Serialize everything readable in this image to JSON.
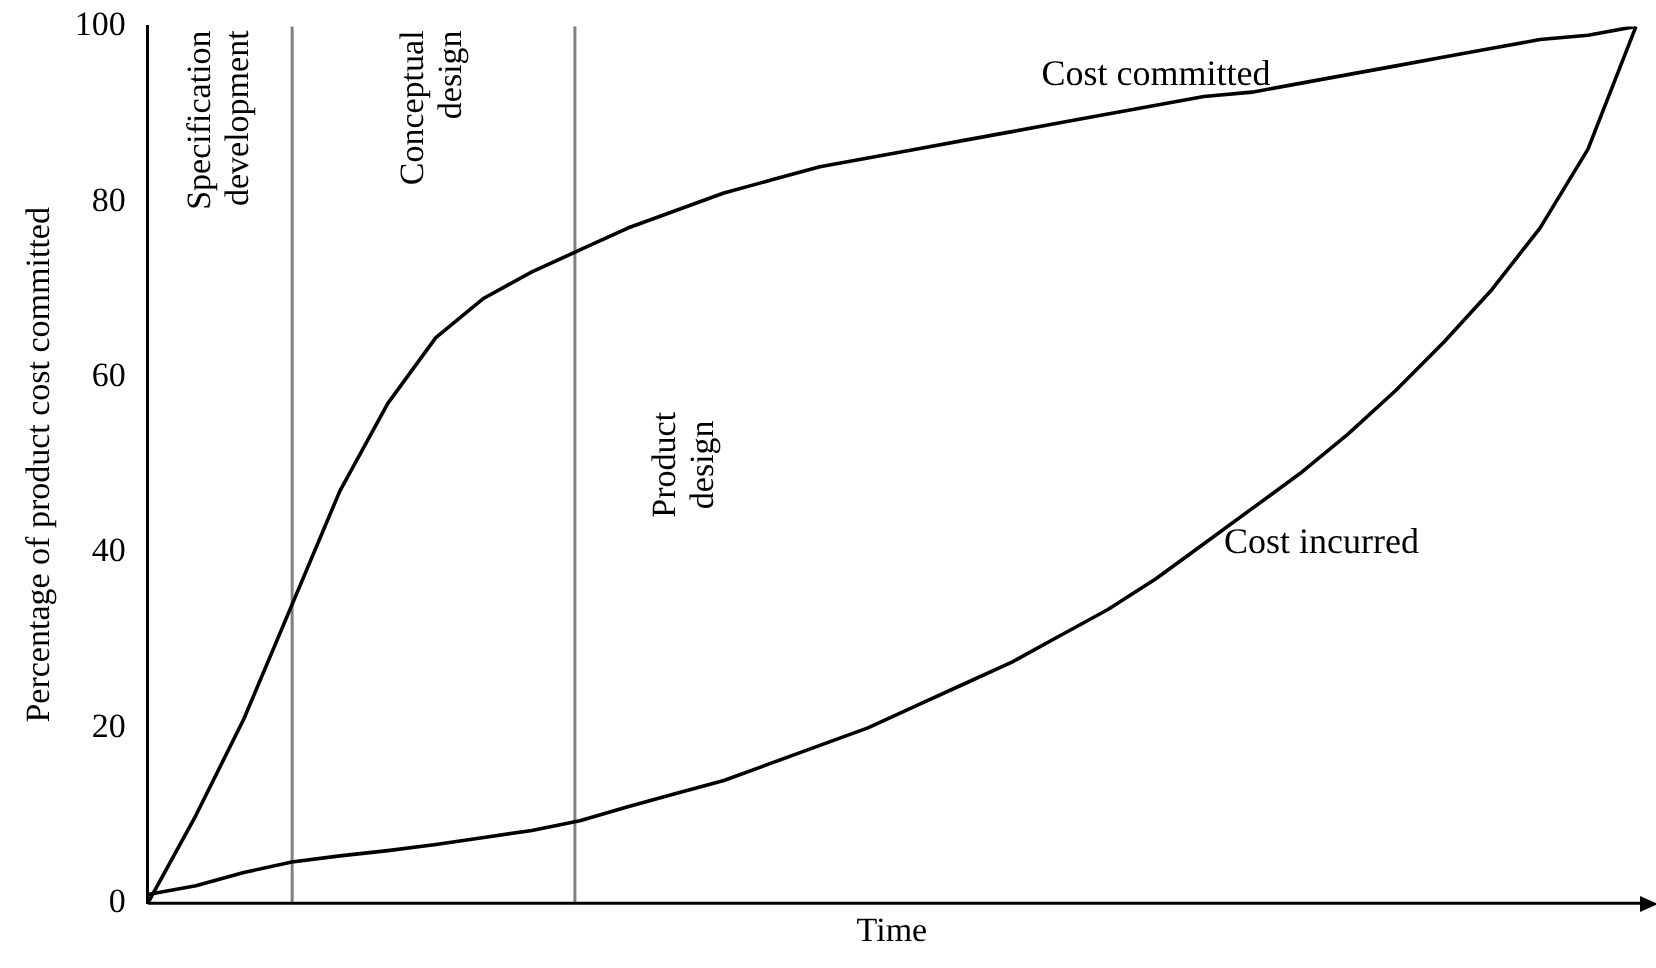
{
  "chart_data": {
    "type": "line",
    "xlabel": "Time",
    "ylabel": "Percentage of product cost committed",
    "categories": [
      null,
      null,
      null,
      null,
      null,
      null,
      null,
      null,
      null,
      null,
      null,
      null,
      null,
      null,
      null,
      null,
      null,
      null,
      null,
      null,
      null,
      null,
      null,
      null,
      null,
      null,
      null,
      null,
      null,
      null,
      null,
      null
    ],
    "ylim": [
      0,
      100
    ],
    "yticks": [
      0,
      20,
      40,
      60,
      80,
      100
    ],
    "tick_labels": "y",
    "grid": false,
    "legend": false,
    "marker": "none",
    "line_style": "solid",
    "series": [
      {
        "name": "Cost committed",
        "color": "#000000",
        "values": [
          0,
          10,
          21,
          34,
          47,
          57,
          64.5,
          69,
          72,
          74.5,
          77,
          79,
          81,
          82.5,
          84,
          85,
          86,
          87,
          88,
          89,
          90,
          91,
          92,
          92.5,
          93.5,
          94.5,
          95.5,
          96.5,
          97.5,
          98.5,
          99,
          100
        ]
      },
      {
        "name": "Cost incurred",
        "color": "#000000",
        "values": [
          1,
          2,
          3.5,
          4.7,
          5.4,
          6,
          6.7,
          7.5,
          8.3,
          9.4,
          11,
          12.5,
          14,
          16,
          18,
          20,
          22.5,
          25,
          27.5,
          30.5,
          33.5,
          37,
          41,
          45,
          49,
          53.5,
          58.5,
          64,
          70,
          77,
          86,
          100
        ]
      }
    ],
    "annotations": [
      "Specification development",
      "Conceptual design",
      "Product design"
    ]
  }
}
